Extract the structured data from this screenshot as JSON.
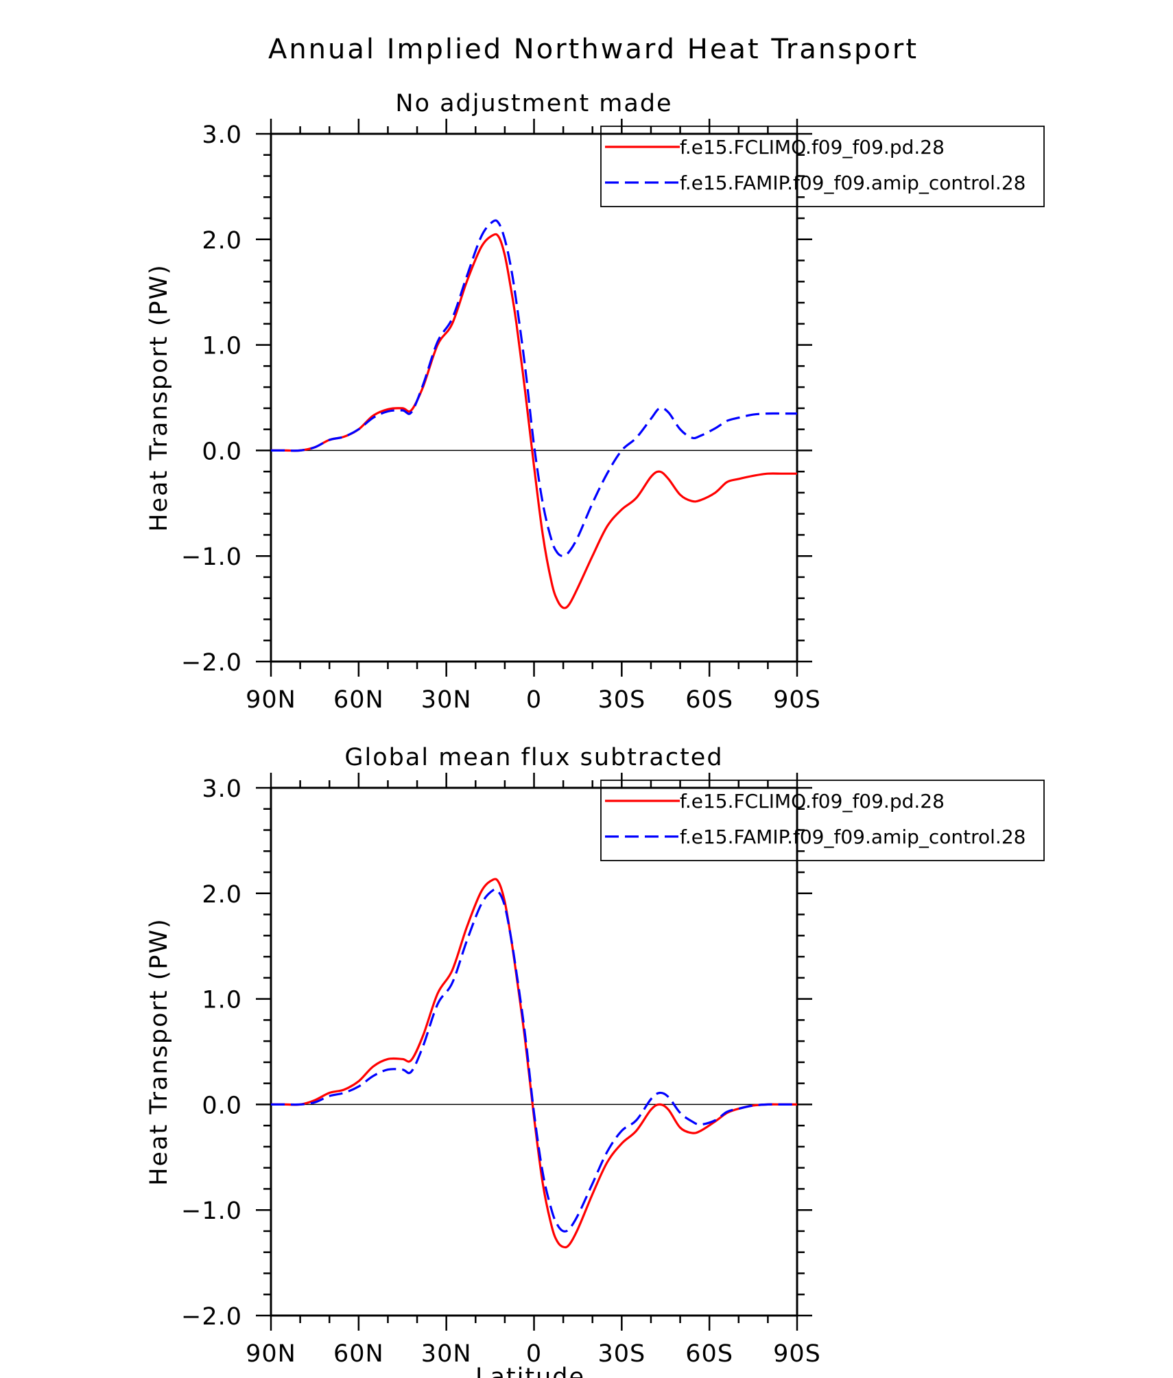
{
  "figure": {
    "title": "Annual Implied Northward Heat Transport",
    "xlabel": "Latitude"
  },
  "chart_data": [
    {
      "type": "line",
      "title": "No adjustment made",
      "xlabel": "",
      "ylabel": "Heat Transport (PW)",
      "xlim": [
        90,
        -90
      ],
      "ylim": [
        -2.0,
        3.0
      ],
      "x_ticks": [
        90,
        60,
        30,
        0,
        -30,
        -60,
        -90
      ],
      "x_tick_labels": [
        "90N",
        "60N",
        "30N",
        "0",
        "30S",
        "60S",
        "90S"
      ],
      "y_ticks": [
        3.0,
        2.0,
        1.0,
        0.0,
        -1.0,
        -2.0
      ],
      "y_tick_labels": [
        "3.0",
        "2.0",
        "1.0",
        "0.0",
        "−1.0",
        "−2.0"
      ],
      "grid": false,
      "zero_line": true,
      "legend_position": "top-right",
      "series": [
        {
          "name": "f.e15.FCLIMO.f09_f09.pd.28",
          "color": "#ff0000",
          "style": "solid",
          "x": [
            90,
            85,
            80,
            75,
            70,
            65,
            60,
            55,
            50,
            45,
            42,
            38,
            33,
            28,
            23,
            18,
            14,
            12,
            10,
            8,
            6,
            3,
            0,
            -3,
            -6,
            -8,
            -10,
            -12,
            -15,
            -20,
            -25,
            -30,
            -35,
            -40,
            -43,
            -46,
            -50,
            -54,
            -57,
            -62,
            -66,
            -70,
            -75,
            -80,
            -85,
            -90
          ],
          "values": [
            0.0,
            0.0,
            0.0,
            0.03,
            0.1,
            0.13,
            0.2,
            0.33,
            0.39,
            0.4,
            0.38,
            0.6,
            1.0,
            1.2,
            1.6,
            1.93,
            2.04,
            2.02,
            1.85,
            1.55,
            1.2,
            0.55,
            -0.15,
            -0.8,
            -1.25,
            -1.42,
            -1.49,
            -1.46,
            -1.3,
            -1.0,
            -0.72,
            -0.56,
            -0.45,
            -0.25,
            -0.2,
            -0.27,
            -0.42,
            -0.48,
            -0.47,
            -0.4,
            -0.3,
            -0.27,
            -0.24,
            -0.22,
            -0.22,
            -0.22
          ]
        },
        {
          "name": "f.e15.FAMIP.f09_f09.amip_control.28",
          "color": "#0000ff",
          "style": "dashed",
          "x": [
            90,
            85,
            80,
            75,
            70,
            65,
            60,
            55,
            50,
            45,
            42,
            38,
            33,
            28,
            23,
            18,
            14,
            12,
            10,
            8,
            6,
            3,
            0,
            -3,
            -6,
            -8,
            -10,
            -12,
            -15,
            -20,
            -25,
            -30,
            -35,
            -40,
            -43,
            -46,
            -50,
            -54,
            -57,
            -62,
            -66,
            -70,
            -75,
            -80,
            -85,
            -90
          ],
          "values": [
            0.0,
            0.0,
            0.0,
            0.03,
            0.1,
            0.13,
            0.2,
            0.31,
            0.37,
            0.38,
            0.36,
            0.62,
            1.03,
            1.25,
            1.65,
            2.03,
            2.17,
            2.15,
            2.0,
            1.75,
            1.4,
            0.78,
            0.05,
            -0.5,
            -0.85,
            -0.97,
            -1.0,
            -0.96,
            -0.82,
            -0.5,
            -0.22,
            0.0,
            0.12,
            0.3,
            0.4,
            0.36,
            0.2,
            0.12,
            0.14,
            0.21,
            0.28,
            0.31,
            0.34,
            0.35,
            0.35,
            0.35
          ]
        }
      ]
    },
    {
      "type": "line",
      "title": "Global mean flux subtracted",
      "xlabel": "",
      "ylabel": "Heat Transport (PW)",
      "xlim": [
        90,
        -90
      ],
      "ylim": [
        -2.0,
        3.0
      ],
      "x_ticks": [
        90,
        60,
        30,
        0,
        -30,
        -60,
        -90
      ],
      "x_tick_labels": [
        "90N",
        "60N",
        "30N",
        "0",
        "30S",
        "60S",
        "90S"
      ],
      "y_ticks": [
        3.0,
        2.0,
        1.0,
        0.0,
        -1.0,
        -2.0
      ],
      "y_tick_labels": [
        "3.0",
        "2.0",
        "1.0",
        "0.0",
        "−1.0",
        "−2.0"
      ],
      "grid": false,
      "zero_line": true,
      "legend_position": "top-right",
      "series": [
        {
          "name": "f.e15.FCLIMO.f09_f09.pd.28",
          "color": "#ff0000",
          "style": "solid",
          "x": [
            90,
            85,
            80,
            75,
            70,
            65,
            60,
            55,
            50,
            45,
            42,
            38,
            33,
            28,
            23,
            18,
            14,
            12,
            10,
            8,
            6,
            3,
            0,
            -3,
            -6,
            -8,
            -10,
            -12,
            -15,
            -20,
            -25,
            -30,
            -35,
            -40,
            -43,
            -46,
            -50,
            -54,
            -57,
            -62,
            -66,
            -70,
            -75,
            -80,
            -85,
            -90
          ],
          "values": [
            0.0,
            0.0,
            0.0,
            0.04,
            0.11,
            0.14,
            0.22,
            0.36,
            0.43,
            0.43,
            0.42,
            0.65,
            1.05,
            1.27,
            1.68,
            2.02,
            2.13,
            2.1,
            1.92,
            1.6,
            1.22,
            0.6,
            -0.12,
            -0.75,
            -1.15,
            -1.3,
            -1.35,
            -1.33,
            -1.18,
            -0.85,
            -0.55,
            -0.37,
            -0.25,
            -0.05,
            0.0,
            -0.05,
            -0.22,
            -0.27,
            -0.25,
            -0.16,
            -0.08,
            -0.04,
            -0.01,
            0.0,
            0.0,
            0.0
          ]
        },
        {
          "name": "f.e15.FAMIP.f09_f09.amip_control.28",
          "color": "#0000ff",
          "style": "dashed",
          "x": [
            90,
            85,
            80,
            75,
            70,
            65,
            60,
            55,
            50,
            45,
            42,
            38,
            33,
            28,
            23,
            18,
            14,
            12,
            10,
            8,
            6,
            3,
            0,
            -3,
            -6,
            -8,
            -10,
            -12,
            -15,
            -20,
            -25,
            -30,
            -35,
            -40,
            -43,
            -46,
            -50,
            -54,
            -57,
            -62,
            -66,
            -70,
            -75,
            -80,
            -85,
            -90
          ],
          "values": [
            0.0,
            0.0,
            0.0,
            0.02,
            0.08,
            0.11,
            0.17,
            0.27,
            0.33,
            0.33,
            0.31,
            0.55,
            0.95,
            1.15,
            1.55,
            1.9,
            2.03,
            2.01,
            1.88,
            1.6,
            1.25,
            0.65,
            -0.08,
            -0.65,
            -1.0,
            -1.14,
            -1.2,
            -1.18,
            -1.05,
            -0.75,
            -0.45,
            -0.25,
            -0.15,
            0.05,
            0.11,
            0.07,
            -0.08,
            -0.16,
            -0.19,
            -0.15,
            -0.07,
            -0.04,
            -0.01,
            0.0,
            0.0,
            0.0
          ]
        }
      ]
    }
  ]
}
